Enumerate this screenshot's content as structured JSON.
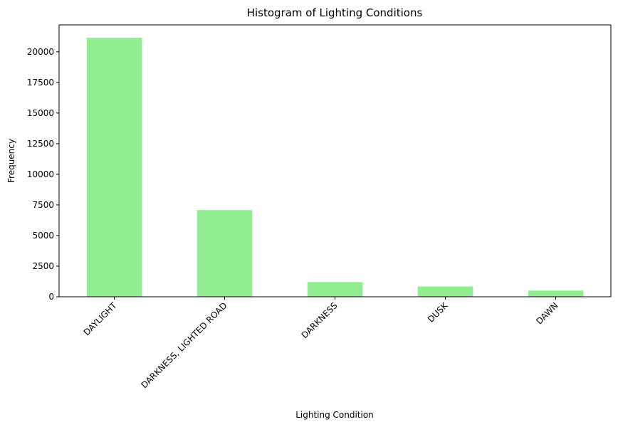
{
  "chart_data": {
    "type": "bar",
    "title": "Histogram of Lighting Conditions",
    "xlabel": "Lighting Condition",
    "ylabel": "Frequency",
    "categories": [
      "DAYLIGHT",
      "DARKNESS, LIGHTED ROAD",
      "DARKNESS",
      "DUSK",
      "DAWN"
    ],
    "values": [
      21150,
      7080,
      1200,
      840,
      500
    ],
    "ylim": [
      0,
      22200
    ],
    "yticks": [
      0,
      2500,
      5000,
      7500,
      10000,
      12500,
      15000,
      17500,
      20000
    ],
    "ytick_labels": [
      "0",
      "2500",
      "5000",
      "7500",
      "10000",
      "12500",
      "15000",
      "17500",
      "20000"
    ],
    "bar_color": "#90ee90",
    "grid": false,
    "legend": "none"
  }
}
